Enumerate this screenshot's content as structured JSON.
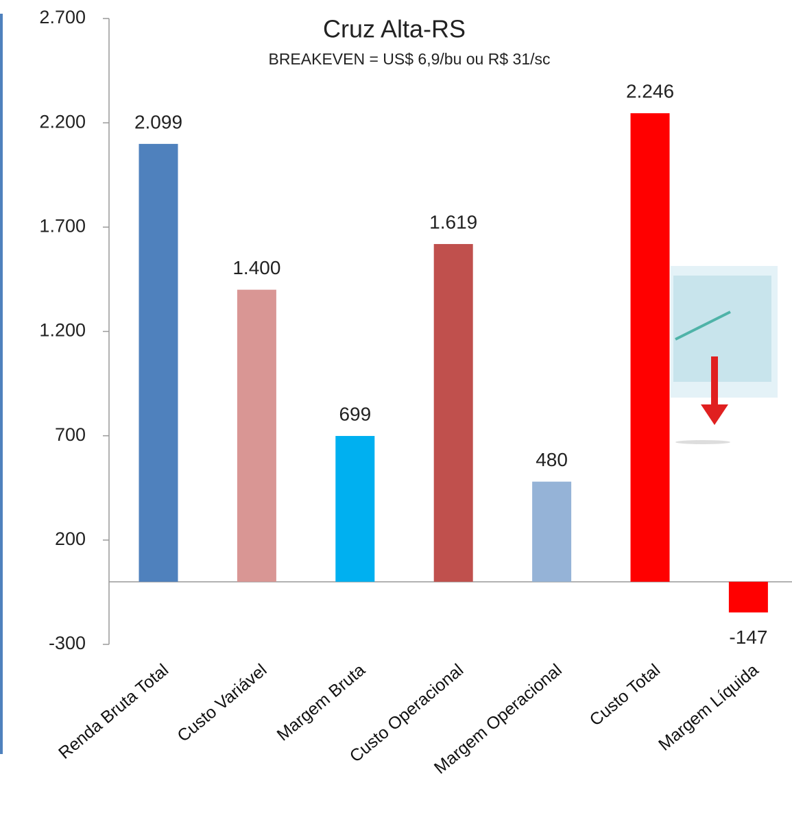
{
  "chart_data": {
    "type": "bar",
    "title": "Cruz Alta-RS",
    "subtitle": "BREAKEVEN = US$ 6,9/bu ou R$ 31/sc",
    "categories": [
      "Renda Bruta Total",
      "Custo Variável",
      "Margem Bruta",
      "Custo Operacional",
      "Margem Operacional",
      "Custo Total",
      "Margem Líquida"
    ],
    "values": [
      2099,
      1400,
      699,
      1619,
      480,
      2246,
      -147
    ],
    "value_labels": [
      "2.099",
      "1.400",
      "699",
      "1.619",
      "480",
      "2.246",
      "-147"
    ],
    "colors": [
      "#4f81bd",
      "#d99694",
      "#00b0f0",
      "#c0504d",
      "#95b3d7",
      "#ff0000",
      "#ff0000"
    ],
    "ylim": [
      -300,
      2700
    ],
    "yticks": [
      -300,
      200,
      700,
      {
        "value": 1200,
        "label": "1.200"
      },
      {
        "value": 1700,
        "label": "1.700"
      },
      {
        "value": 2200,
        "label": "2.200"
      },
      {
        "value": 2700,
        "label": "2.700"
      }
    ],
    "grid": false
  }
}
